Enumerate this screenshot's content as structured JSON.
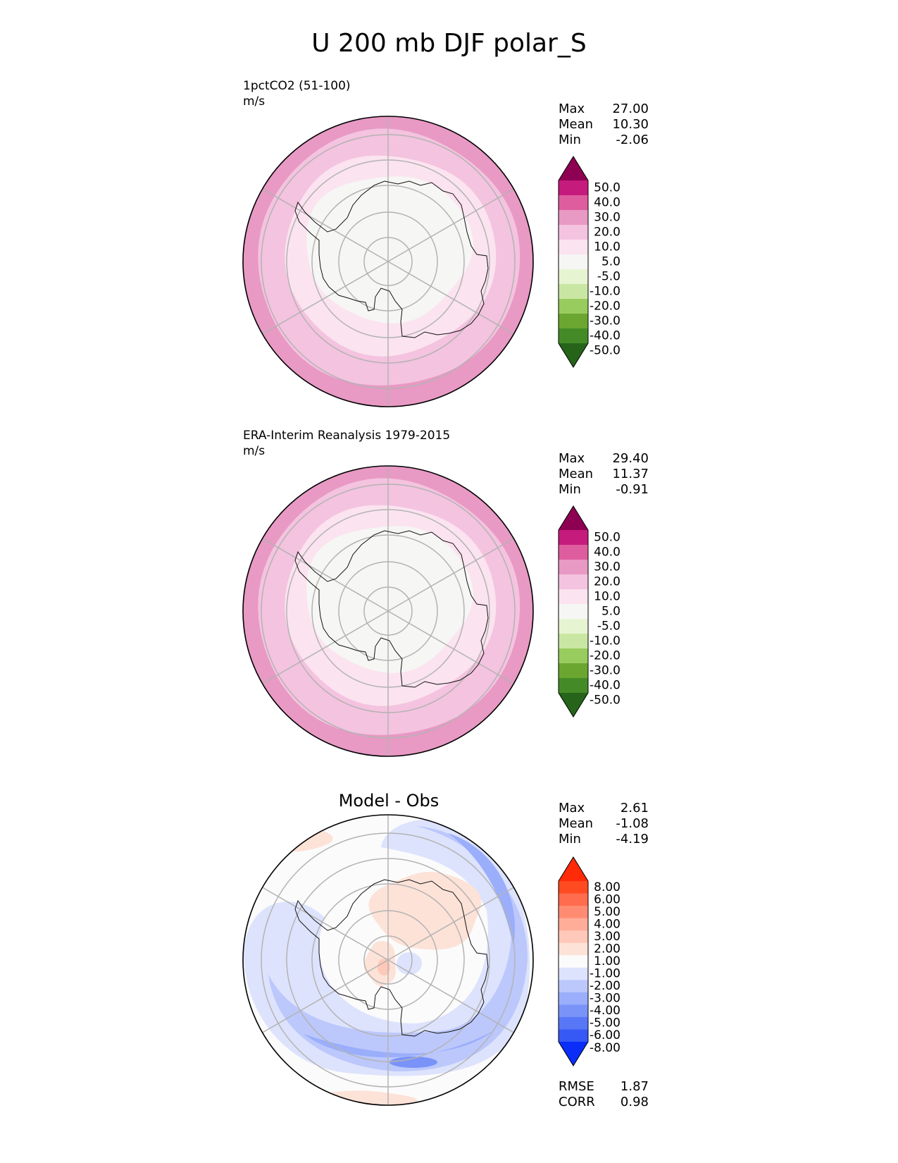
{
  "title": "U 200 mb DJF polar_S",
  "panels": [
    {
      "name": "test",
      "title_line1": "1pctCO2 (51-100)",
      "units": "m/s",
      "stats": [
        {
          "label": "Max",
          "value": "27.00"
        },
        {
          "label": "Mean",
          "value": "10.30"
        },
        {
          "label": "Min",
          "value": "-2.06"
        }
      ],
      "colorbar": {
        "levels": [
          "50.0",
          "40.0",
          "30.0",
          "20.0",
          "10.0",
          "5.0",
          "-5.0",
          "-10.0",
          "-20.0",
          "-30.0",
          "-40.0",
          "-50.0"
        ],
        "colors": [
          "#8e0152",
          "#c51b7d",
          "#de5d9e",
          "#e899c4",
          "#f4c3df",
          "#fbe3ef",
          "#f6f6f4",
          "#e6f4d2",
          "#c9e7a2",
          "#98cc5f",
          "#6ba631",
          "#448b27",
          "#256419"
        ]
      },
      "rings": [
        "#e899c4",
        "#f4c3df",
        "#fbe3ef",
        "#f6f6f4"
      ]
    },
    {
      "name": "reference",
      "title_line1": "ERA-Interim Reanalysis 1979-2015",
      "units": "m/s",
      "stats": [
        {
          "label": "Max",
          "value": "29.40"
        },
        {
          "label": "Mean",
          "value": "11.37"
        },
        {
          "label": "Min",
          "value": "-0.91"
        }
      ],
      "colorbar": {
        "levels": [
          "50.0",
          "40.0",
          "30.0",
          "20.0",
          "10.0",
          "5.0",
          "-5.0",
          "-10.0",
          "-20.0",
          "-30.0",
          "-40.0",
          "-50.0"
        ],
        "colors": [
          "#8e0152",
          "#c51b7d",
          "#de5d9e",
          "#e899c4",
          "#f4c3df",
          "#fbe3ef",
          "#f6f6f4",
          "#e6f4d2",
          "#c9e7a2",
          "#98cc5f",
          "#6ba631",
          "#448b27",
          "#256419"
        ]
      },
      "rings": [
        "#e899c4",
        "#f4c3df",
        "#fbe3ef",
        "#f6f6f4"
      ]
    },
    {
      "name": "diff",
      "title": "Model - Obs",
      "stats": [
        {
          "label": "Max",
          "value": "2.61"
        },
        {
          "label": "Mean",
          "value": "-1.08"
        },
        {
          "label": "Min",
          "value": "-4.19"
        }
      ],
      "colorbar": {
        "levels": [
          "8.00",
          "6.00",
          "5.00",
          "4.00",
          "3.00",
          "2.00",
          "1.00",
          "-1.00",
          "-2.00",
          "-3.00",
          "-4.00",
          "-5.00",
          "-6.00",
          "-8.00"
        ],
        "colors": [
          "#ff2a08",
          "#ff4a22",
          "#ff6c4e",
          "#ff8c72",
          "#ffad98",
          "#ffc8b8",
          "#fde2d8",
          "#fbfbfb",
          "#dde3fc",
          "#bcc8fc",
          "#9baefb",
          "#7a93f9",
          "#5877f7",
          "#3659f5",
          "#0a2ef7"
        ]
      },
      "footer_stats": [
        {
          "label": "RMSE",
          "value": "1.87"
        },
        {
          "label": "CORR",
          "value": "0.98"
        }
      ]
    }
  ],
  "chart_data": [
    {
      "type": "heatmap",
      "title": "1pctCO2 (51-100)",
      "units": "m/s",
      "projection": "south polar stereographic",
      "stats": {
        "max": 27.0,
        "mean": 10.3,
        "min": -2.06
      },
      "contour_levels": [
        -50,
        -40,
        -30,
        -20,
        -10,
        -5,
        5,
        10,
        20,
        30,
        40,
        50
      ]
    },
    {
      "type": "heatmap",
      "title": "ERA-Interim Reanalysis 1979-2015",
      "units": "m/s",
      "projection": "south polar stereographic",
      "stats": {
        "max": 29.4,
        "mean": 11.37,
        "min": -0.91
      },
      "contour_levels": [
        -50,
        -40,
        -30,
        -20,
        -10,
        -5,
        5,
        10,
        20,
        30,
        40,
        50
      ]
    },
    {
      "type": "heatmap",
      "title": "Model - Obs",
      "projection": "south polar stereographic",
      "stats": {
        "max": 2.61,
        "mean": -1.08,
        "min": -4.19,
        "rmse": 1.87,
        "corr": 0.98
      },
      "contour_levels": [
        -8,
        -6,
        -5,
        -4,
        -3,
        -2,
        -1,
        1,
        2,
        3,
        4,
        5,
        6,
        8
      ]
    }
  ]
}
